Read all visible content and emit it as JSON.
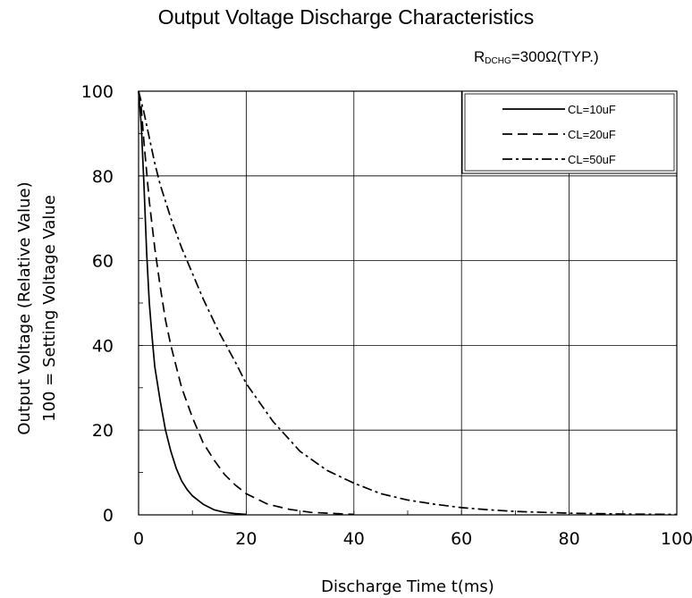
{
  "chart_data": {
    "type": "line",
    "title": "Output Voltage Discharge Characteristics",
    "condition": {
      "r_main": "R",
      "r_sub": "DCHG",
      "rest": "=300Ω(TYP.)"
    },
    "xlabel": "Discharge Time t(ms)",
    "ylabel_line1": "Output Voltage (Relative Value)",
    "ylabel_line2": "100 = Setting Voltage Value",
    "xlim": [
      0,
      100
    ],
    "ylim": [
      0,
      100
    ],
    "xticks": [
      0,
      20,
      40,
      60,
      80,
      100
    ],
    "yticks": [
      0,
      20,
      40,
      60,
      80,
      100
    ],
    "grid": true,
    "legend_position": "top-right",
    "series": [
      {
        "name": "CL=10uF",
        "dash": "solid",
        "x": [
          0,
          0.5,
          1,
          1.5,
          2,
          2.5,
          3,
          4,
          5,
          6,
          7,
          8,
          9,
          10,
          12,
          14,
          16,
          18,
          20
        ],
        "y": [
          100,
          92,
          78,
          62,
          50,
          42,
          35,
          27,
          20,
          15,
          11,
          8,
          6,
          4.5,
          2.5,
          1.2,
          0.6,
          0.3,
          0.1
        ]
      },
      {
        "name": "CL=20uF",
        "dash": "dash",
        "x": [
          0,
          0.5,
          1,
          2,
          3,
          4,
          5,
          6,
          7,
          8,
          10,
          12,
          14,
          16,
          18,
          20,
          24,
          28,
          32,
          40
        ],
        "y": [
          100,
          96,
          88,
          74,
          63,
          54,
          46,
          40,
          35,
          30,
          23,
          17,
          13,
          9.5,
          7,
          5,
          2.5,
          1.3,
          0.6,
          0.1
        ]
      },
      {
        "name": "CL=50uF",
        "dash": "dashdot",
        "x": [
          0,
          1,
          2,
          3,
          4,
          5,
          6,
          8,
          10,
          12,
          15,
          18,
          20,
          25,
          30,
          35,
          40,
          45,
          50,
          55,
          60,
          65,
          70,
          80,
          90,
          100
        ],
        "y": [
          100,
          95,
          89,
          83,
          78,
          74,
          70,
          63,
          57,
          51,
          43,
          36,
          31,
          22,
          15,
          10.5,
          7.5,
          5,
          3.5,
          2.5,
          1.7,
          1.2,
          0.8,
          0.4,
          0.2,
          0.1
        ]
      }
    ]
  }
}
